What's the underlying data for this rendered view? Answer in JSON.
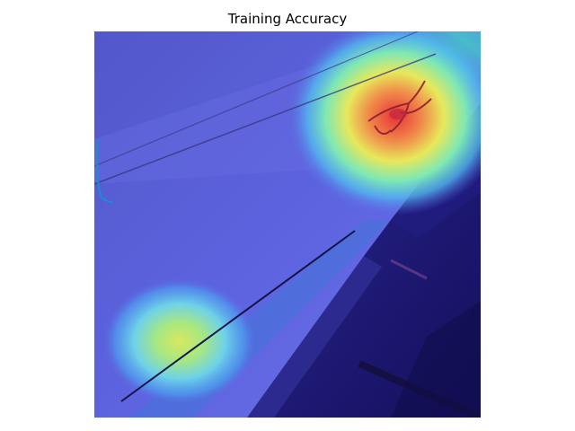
{
  "figure": {
    "title": "Training Accuracy"
  },
  "image": {
    "description_hidden": "",
    "colormap": "jet",
    "hotspots": [
      {
        "level": 1.0
      },
      {
        "level": 0.55
      }
    ],
    "colors": {
      "background_white": "#ffffff",
      "base_blue": "#5a5fd6",
      "dark_region": "#1a1670",
      "hot_red": "#e8323a",
      "warm_yellow": "#e3e35a",
      "cyan": "#3fd0c8"
    }
  }
}
